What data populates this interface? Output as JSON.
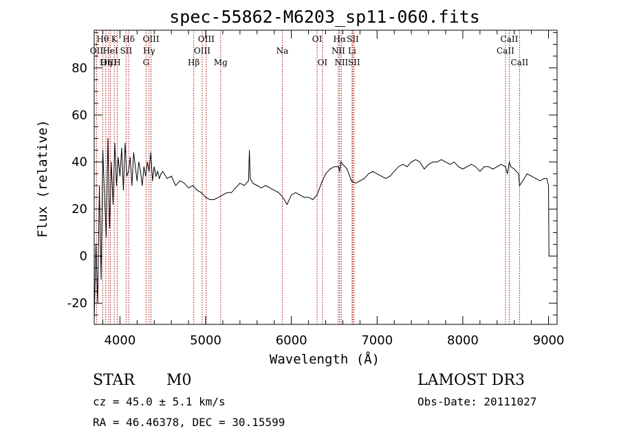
{
  "chart_data": {
    "type": "line",
    "title": "spec-55862-M6203_sp11-060.fits",
    "xlabel": "Wavelength (Å)",
    "ylabel": "Flux (relative)",
    "xlim": [
      3700,
      9100
    ],
    "ylim": [
      -29,
      96
    ],
    "xticks": [
      4000,
      5000,
      6000,
      7000,
      8000,
      9000
    ],
    "yticks": [
      -20,
      0,
      20,
      40,
      60,
      80
    ],
    "series": [
      {
        "name": "flux",
        "x": [
          3700,
          3720,
          3740,
          3760,
          3780,
          3800,
          3820,
          3840,
          3860,
          3880,
          3900,
          3920,
          3940,
          3960,
          3980,
          4000,
          4020,
          4040,
          4060,
          4080,
          4100,
          4120,
          4140,
          4160,
          4180,
          4200,
          4220,
          4240,
          4260,
          4280,
          4300,
          4320,
          4340,
          4360,
          4380,
          4400,
          4420,
          4440,
          4460,
          4480,
          4500,
          4550,
          4600,
          4650,
          4700,
          4750,
          4800,
          4850,
          4900,
          4950,
          5000,
          5050,
          5100,
          5150,
          5200,
          5250,
          5300,
          5350,
          5400,
          5450,
          5500,
          5510,
          5520,
          5550,
          5600,
          5650,
          5700,
          5750,
          5800,
          5850,
          5900,
          5950,
          6000,
          6050,
          6100,
          6150,
          6200,
          6250,
          6300,
          6350,
          6400,
          6450,
          6500,
          6550,
          6563,
          6580,
          6600,
          6650,
          6700,
          6750,
          6800,
          6850,
          6900,
          6950,
          7000,
          7050,
          7100,
          7150,
          7200,
          7250,
          7300,
          7350,
          7400,
          7450,
          7500,
          7550,
          7600,
          7650,
          7700,
          7750,
          7800,
          7850,
          7900,
          7950,
          8000,
          8050,
          8100,
          8150,
          8200,
          8250,
          8300,
          8350,
          8400,
          8450,
          8498,
          8520,
          8542,
          8560,
          8600,
          8650,
          8662,
          8700,
          8750,
          8800,
          8850,
          8900,
          8950,
          8980,
          9000,
          9005
        ],
        "values": [
          -27,
          5,
          -20,
          30,
          -10,
          45,
          25,
          8,
          50,
          12,
          40,
          22,
          48,
          30,
          42,
          34,
          46,
          28,
          48,
          34,
          36,
          42,
          30,
          44,
          38,
          32,
          40,
          36,
          30,
          38,
          34,
          40,
          36,
          44,
          32,
          38,
          34,
          36,
          33,
          35,
          36,
          33,
          34,
          30,
          32,
          31,
          29,
          30,
          28,
          27,
          25,
          24,
          24,
          25,
          26,
          27,
          27,
          29,
          31,
          30,
          32,
          45,
          33,
          31,
          30,
          29,
          30,
          29,
          28,
          27,
          25,
          22,
          26,
          27,
          26,
          25,
          25,
          24,
          26,
          31,
          35,
          37,
          38,
          38,
          36,
          40,
          39,
          37,
          32,
          31,
          32,
          33,
          35,
          36,
          35,
          34,
          33,
          34,
          36,
          38,
          39,
          38,
          40,
          41,
          40,
          37,
          39,
          40,
          40,
          41,
          40,
          39,
          40,
          38,
          37,
          38,
          39,
          38,
          36,
          38,
          38,
          37,
          38,
          39,
          38,
          35,
          40,
          38,
          37,
          35,
          30,
          32,
          35,
          34,
          33,
          32,
          33,
          33,
          30,
          0
        ]
      }
    ],
    "lines": [
      {
        "name": "Hθ",
        "x": 3798,
        "row": 1
      },
      {
        "name": "OII",
        "x": 3727,
        "row": 2
      },
      {
        "name": "OIII",
        "x": 3869,
        "row": 3
      },
      {
        "name": "K",
        "x": 3934,
        "row": 1
      },
      {
        "name": "HeI",
        "x": 3889,
        "row": 2
      },
      {
        "name": "Hη",
        "x": 3835,
        "row": 3
      },
      {
        "name": "SII",
        "x": 4072,
        "row": 2
      },
      {
        "name": "H",
        "x": 3968,
        "row": 3
      },
      {
        "name": "Hδ",
        "x": 4102,
        "row": 1
      },
      {
        "name": "OIII",
        "x": 4363,
        "row": 1
      },
      {
        "name": "Hγ",
        "x": 4340,
        "row": 2
      },
      {
        "name": "G",
        "x": 4305,
        "row": 3
      },
      {
        "name": "OIII",
        "x": 5007,
        "row": 1
      },
      {
        "name": "OIII",
        "x": 4959,
        "row": 2
      },
      {
        "name": "Hβ",
        "x": 4861,
        "row": 3
      },
      {
        "name": "Mg",
        "x": 5175,
        "row": 3
      },
      {
        "name": "Na",
        "x": 5894,
        "row": 2
      },
      {
        "name": "OI",
        "x": 6300,
        "row": 1
      },
      {
        "name": "OI",
        "x": 6363,
        "row": 3
      },
      {
        "name": "Hα",
        "x": 6563,
        "row": 1
      },
      {
        "name": "NII",
        "x": 6548,
        "row": 2
      },
      {
        "name": "NII",
        "x": 6583,
        "row": 3
      },
      {
        "name": "SII",
        "x": 6716,
        "row": 1
      },
      {
        "name": "Li",
        "x": 6708,
        "row": 2
      },
      {
        "name": "SII",
        "x": 6731,
        "row": 3
      },
      {
        "name": "CaII",
        "x": 8542,
        "row": 1
      },
      {
        "name": "CaII",
        "x": 8498,
        "row": 2
      },
      {
        "name": "CaII",
        "x": 8662,
        "row": 3
      }
    ],
    "line_color": "#a00000"
  },
  "footer": {
    "class": "STAR",
    "subclass": "M0",
    "survey": "LAMOST DR3",
    "cz": "cz = 45.0 ± 5.1 km/s",
    "obs_date": "Obs-Date: 20111027",
    "coords": "RA =  46.46378, DEC =  30.15599"
  }
}
